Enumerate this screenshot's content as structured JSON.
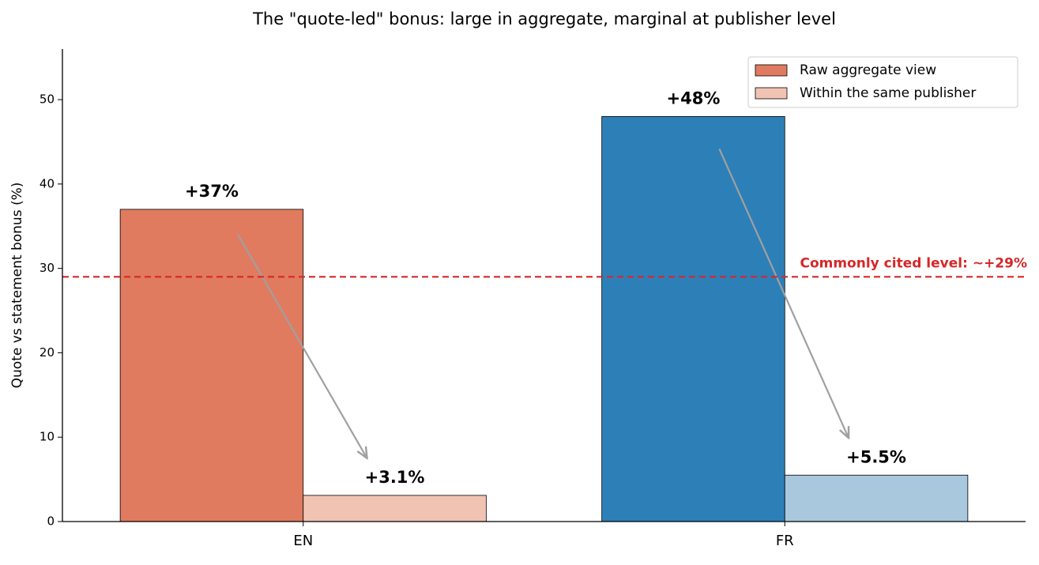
{
  "chart_data": {
    "type": "bar",
    "title": "The \"quote-led\" bonus: large in aggregate, marginal at publisher level",
    "y_label": "Quote vs statement bonus (%)",
    "categories": [
      "EN",
      "FR"
    ],
    "series": [
      {
        "name": "Raw aggregate view",
        "colors": [
          "#e07b5f",
          "#2d7fb8"
        ],
        "values": [
          37,
          48
        ],
        "value_labels": [
          "+37%",
          "+48%"
        ]
      },
      {
        "name": "Within the same publisher",
        "colors": [
          "#f1c3b3",
          "#a9c8de"
        ],
        "values": [
          3.1,
          5.5
        ],
        "value_labels": [
          "+3.1%",
          "+5.5%"
        ]
      }
    ],
    "reference_line": {
      "value": 29,
      "label": "Commonly cited level: ~+29%",
      "color": "#d62728"
    },
    "ylim": [
      0,
      56
    ],
    "yticks": [
      0,
      10,
      20,
      30,
      40,
      50
    ],
    "legend": "upper right",
    "grid": false
  }
}
